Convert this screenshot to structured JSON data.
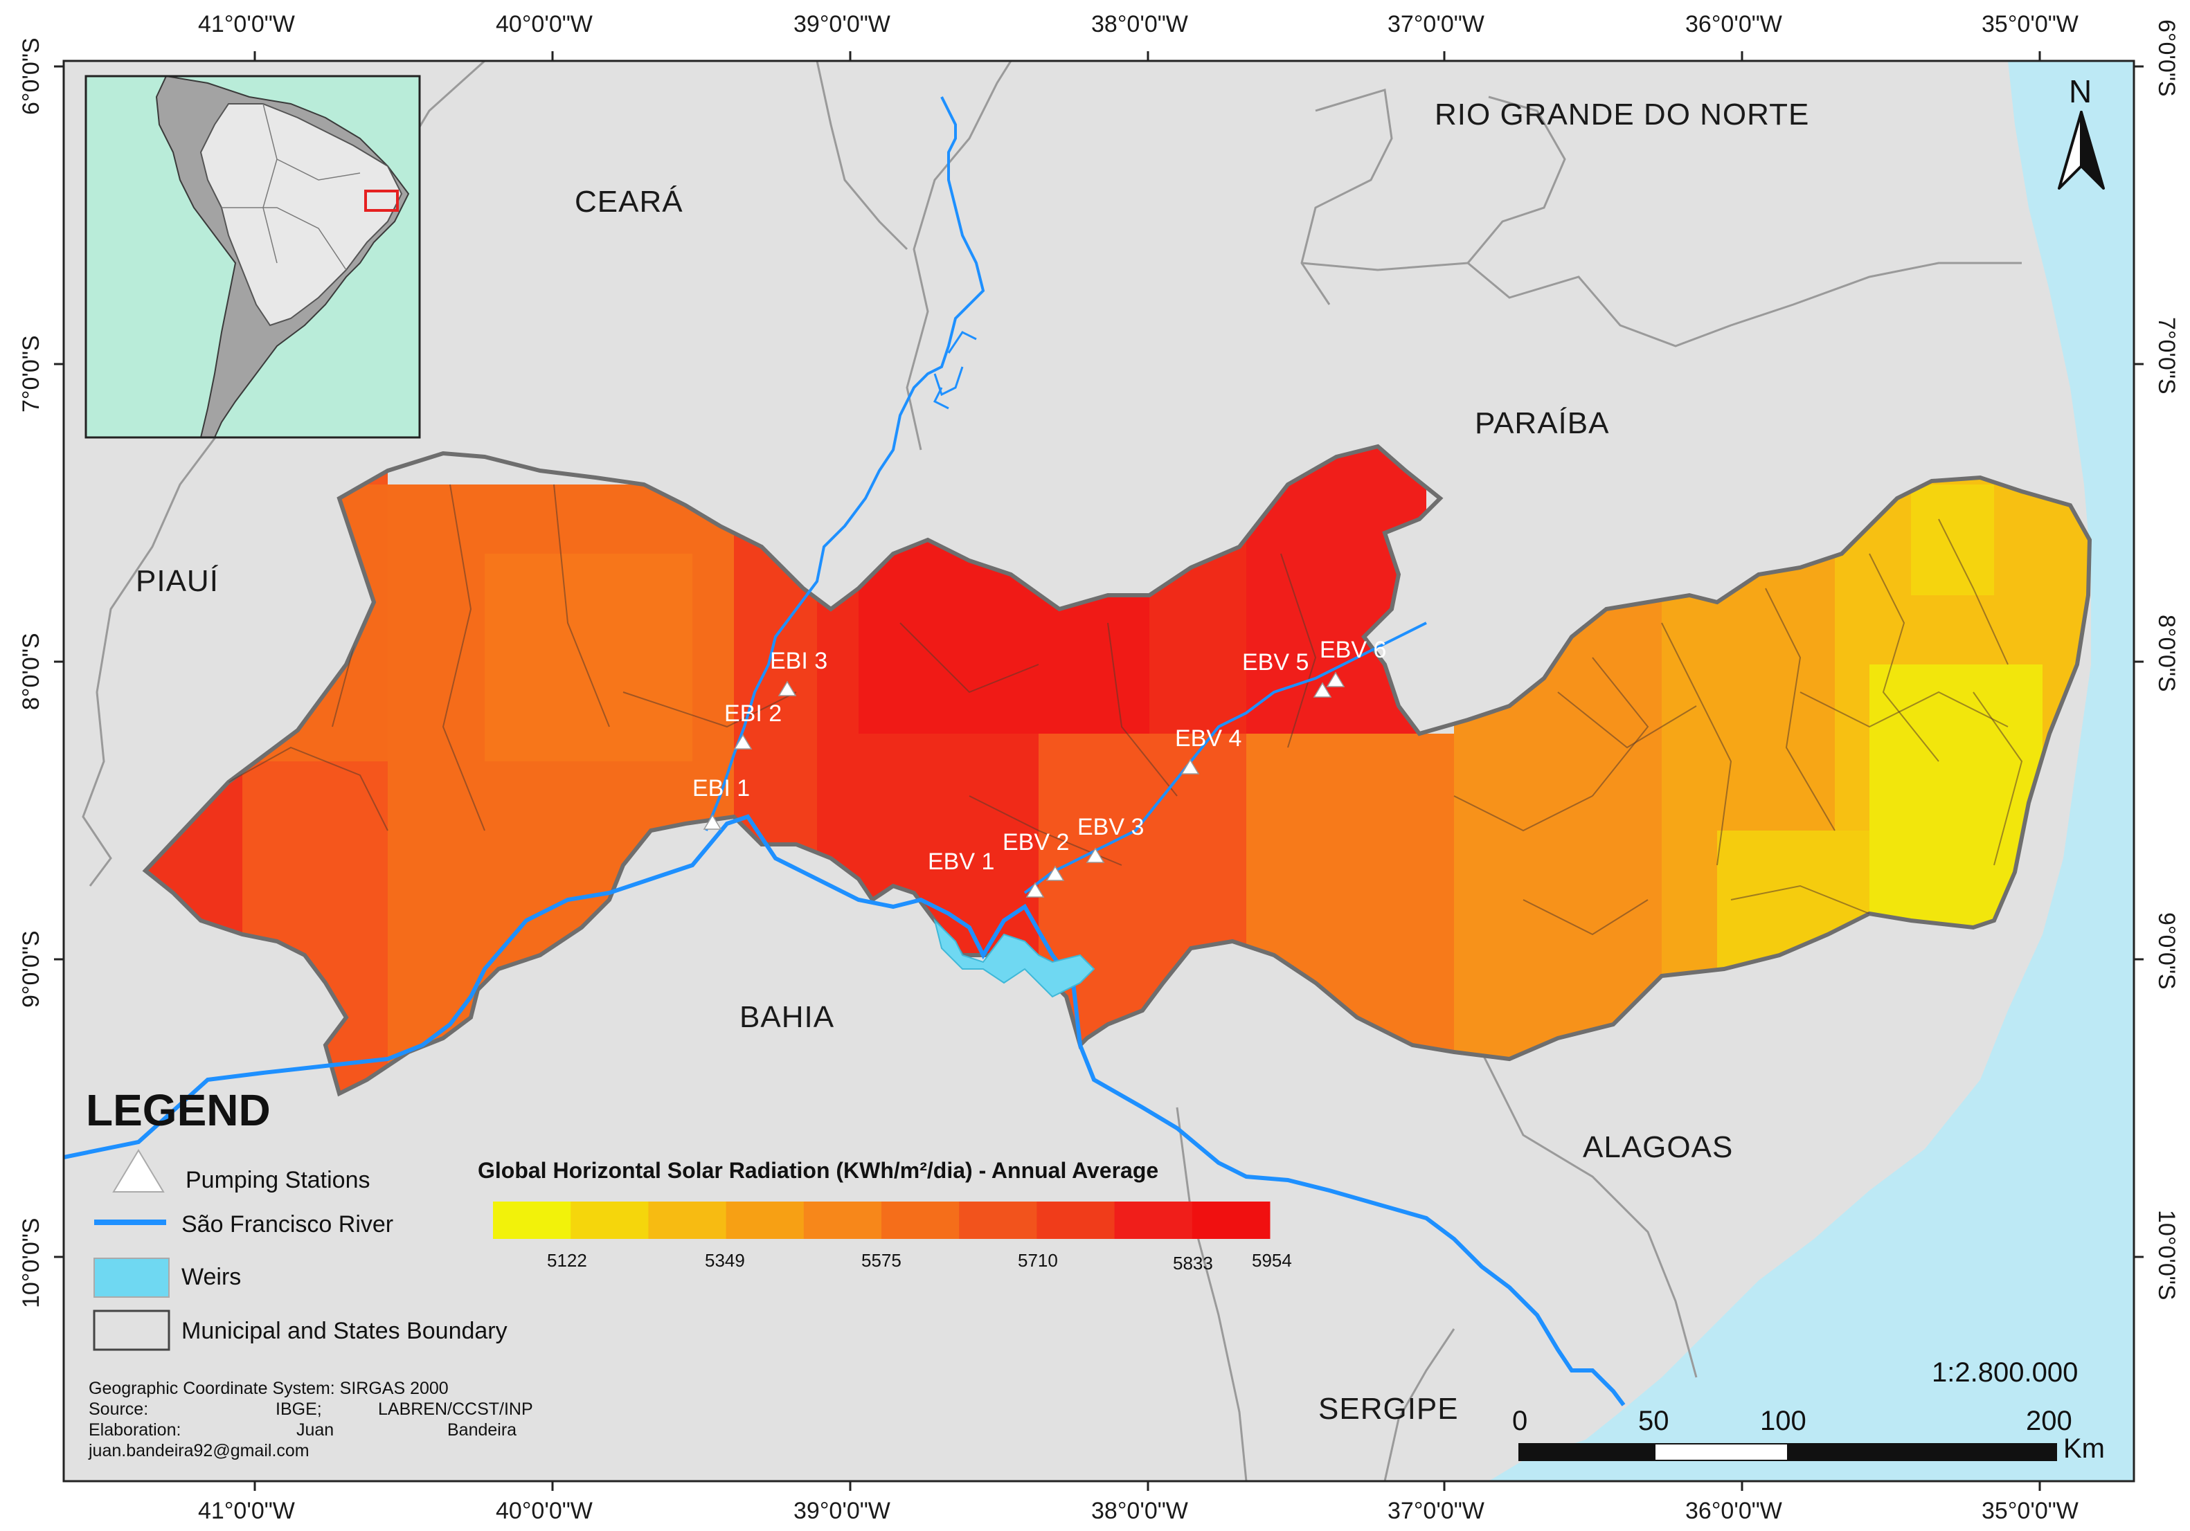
{
  "map": {
    "graticule": {
      "top_labels": [
        "41°0'0\"W",
        "40°0'0\"W",
        "39°0'0\"W",
        "38°0'0\"W",
        "37°0'0\"W",
        "36°0'0\"W",
        "35°0'0\"W"
      ],
      "bottom_labels": [
        "41°0'0\"W",
        "40°0'0\"W",
        "39°0'0\"W",
        "38°0'0\"W",
        "37°0'0\"W",
        "36°0'0\"W",
        "35°0'0\"W"
      ],
      "left_labels": [
        "6°0'0\"S",
        "7°0'0\"S",
        "8°0'0\"S",
        "9°0'0\"S",
        "10°0'0\"S"
      ],
      "right_labels": [
        "6°0'0\"S",
        "7°0'0\"S",
        "8°0'0\"S",
        "9°0'0\"S",
        "10°0'0\"S"
      ]
    },
    "states": {
      "ceara": "CEARÁ",
      "rio_grande_do_norte": "RIO GRANDE DO NORTE",
      "paraiba": "PARAÍBA",
      "piaui": "PIAUÍ",
      "bahia": "BAHIA",
      "alagoas": "ALAGOAS",
      "sergipe": "SERGIPE"
    },
    "stations": [
      "EBI 1",
      "EBI 2",
      "EBI 3",
      "EBV 1",
      "EBV 2",
      "EBV 3",
      "EBV 4",
      "EBV 5",
      "EBV 6"
    ],
    "north_arrow": "N",
    "colors": {
      "ocean": "#bde9f5",
      "land": "#e1e1e1",
      "river": "#1e90ff",
      "weirs": "#6fd8f2",
      "inset_ocean": "#b9ecd9",
      "inset_land": "#a3a3a3"
    }
  },
  "legend": {
    "title": "LEGEND",
    "items": [
      {
        "label": "Pumping Stations",
        "icon": "white-triangle"
      },
      {
        "label": "São Francisco River",
        "icon": "blue-line"
      },
      {
        "label": "Weirs",
        "icon": "cyan-box"
      },
      {
        "label": "Municipal and States Boundary",
        "icon": "grey-box"
      }
    ]
  },
  "color_ramp": {
    "title": "Global Horizontal Solar Radiation (KWh/m²/dia) - Annual Average",
    "tick_labels": [
      "5122",
      "5349",
      "5575",
      "5710",
      "5833",
      "5954"
    ],
    "colors": [
      "#f2f20a",
      "#f5d60c",
      "#f7bb12",
      "#f7a014",
      "#f7871a",
      "#f56e1a",
      "#f2531c",
      "#f03c1a",
      "#f01e1a",
      "#f01010"
    ]
  },
  "credits": {
    "line1": "Geographic Coordinate System: SIRGAS 2000",
    "line2_a": "Source:",
    "line2_b": "IBGE;",
    "line2_c": "LABREN/CCST/INP",
    "line3_a": "Elaboration:",
    "line3_b": "Juan",
    "line3_c": "Bandeira",
    "line4": "juan.bandeira92@gmail.com"
  },
  "scale": {
    "ratio": "1:2.800.000",
    "ticks": [
      "0",
      "50",
      "100",
      "200"
    ],
    "unit": "Km"
  }
}
